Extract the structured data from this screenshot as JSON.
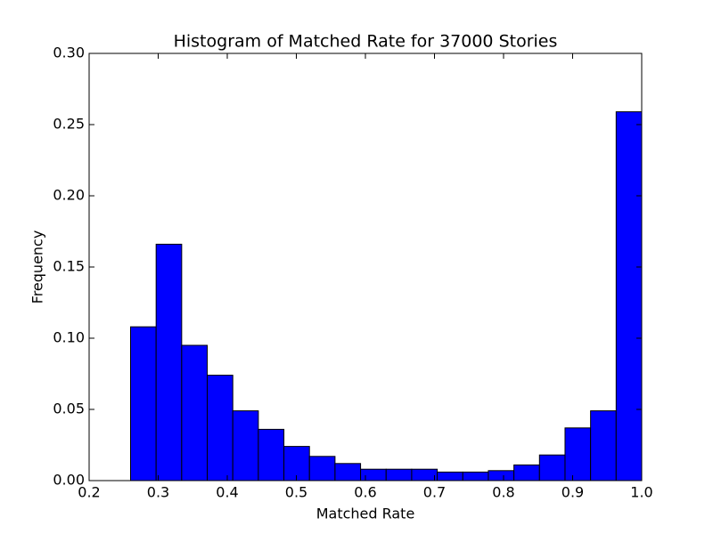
{
  "chart_data": {
    "type": "histogram",
    "title": "Histogram of Matched Rate for 37000 Stories",
    "x_label": "Matched Rate",
    "y_label": "Frequency",
    "bins": [
      0.26,
      0.297,
      0.334,
      0.371,
      0.408,
      0.445,
      0.482,
      0.519,
      0.556,
      0.593,
      0.63,
      0.667,
      0.704,
      0.741,
      0.778,
      0.815,
      0.852,
      0.889,
      0.926,
      0.963,
      1.0
    ],
    "values": [
      0.108,
      0.166,
      0.095,
      0.074,
      0.049,
      0.036,
      0.024,
      0.017,
      0.012,
      0.008,
      0.008,
      0.008,
      0.006,
      0.006,
      0.007,
      0.011,
      0.018,
      0.037,
      0.049,
      0.259
    ],
    "color": "#0000ff",
    "xlim": [
      0.2,
      1.0
    ],
    "xticks": [
      0.2,
      0.3,
      0.4,
      0.5,
      0.6,
      0.7,
      0.8,
      0.9,
      {
        "value": 1.0,
        "label": "1.0"
      }
    ],
    "ylim": [
      0,
      0.3
    ],
    "yticks": [
      {
        "value": 0,
        "label": "0.00"
      },
      {
        "value": 0.05,
        "label": "0.05"
      },
      {
        "value": 0.1,
        "label": "0.10"
      },
      {
        "value": 0.15,
        "label": "0.15"
      },
      {
        "value": 0.2,
        "label": "0.20"
      },
      {
        "value": 0.25,
        "label": "0.25"
      },
      {
        "value": 0.3,
        "label": "0.30"
      }
    ],
    "grid": false
  }
}
